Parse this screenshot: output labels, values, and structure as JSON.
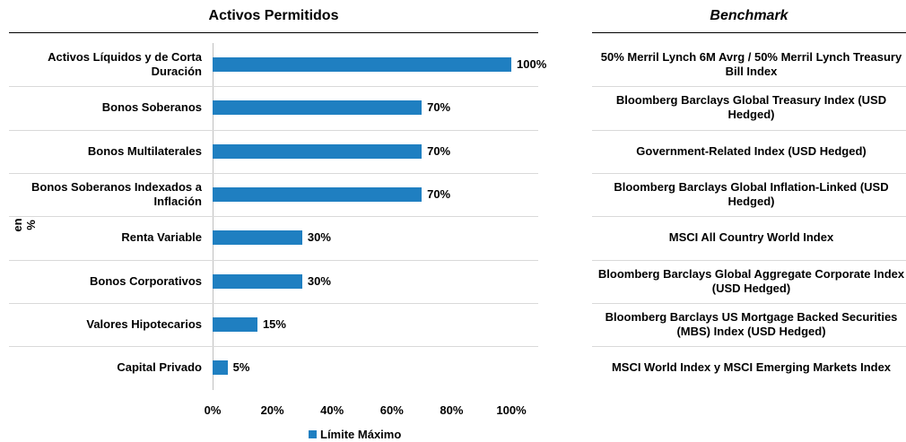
{
  "chart_data": {
    "type": "barh",
    "title": "Activos Permitidos",
    "ylabel": "en %",
    "categories": [
      "Activos Líquidos y de Corta Duración",
      "Bonos Soberanos",
      "Bonos Multilaterales",
      "Bonos Soberanos Indexados a Inflación",
      "Renta Variable",
      "Bonos Corporativos",
      "Valores Hipotecarios",
      "Capital Privado"
    ],
    "series": [
      {
        "name": "Límite Máximo",
        "color": "#1f7fc1",
        "values": [
          100,
          70,
          70,
          70,
          30,
          30,
          15,
          5
        ],
        "value_labels": [
          "100%",
          "70%",
          "70%",
          "70%",
          "30%",
          "30%",
          "15%",
          "5%"
        ]
      }
    ],
    "xlim": [
      0,
      100
    ],
    "xticks": [
      {
        "value": 0,
        "label": "0%"
      },
      {
        "value": 20,
        "label": "20%"
      },
      {
        "value": 40,
        "label": "40%"
      },
      {
        "value": 60,
        "label": "60%"
      },
      {
        "value": 80,
        "label": "80%"
      },
      {
        "value": 100,
        "label": "100%"
      }
    ],
    "legend": "bottom"
  },
  "benchmark": {
    "title": "Benchmark",
    "rows": [
      "50% Merril Lynch 6M Avrg / 50% Merril Lynch Treasury Bill Index",
      "Bloomberg Barclays Global Treasury Index (USD Hedged)",
      "Government-Related Index (USD Hedged)",
      "Bloomberg Barclays Global Inflation-Linked (USD Hedged)",
      "MSCI All Country World Index",
      "Bloomberg Barclays Global Aggregate Corporate Index (USD Hedged)",
      "Bloomberg Barclays US Mortgage Backed Securities (MBS) Index (USD Hedged)",
      "MSCI World Index y MSCI Emerging Markets Index"
    ]
  }
}
